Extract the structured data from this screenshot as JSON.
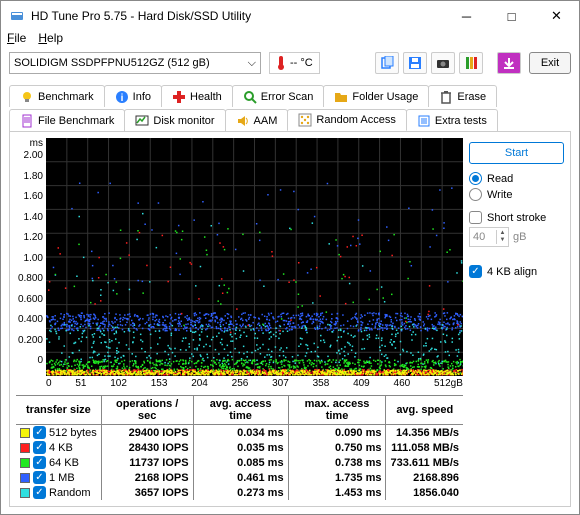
{
  "window": {
    "title": "HD Tune Pro 5.75 - Hard Disk/SSD Utility"
  },
  "menu": {
    "file": "File",
    "help": "Help"
  },
  "drive": {
    "selected": "SOLIDIGM SSDPFPNU512GZ (512 gB)",
    "temp": "-- °C"
  },
  "toolbar_icons": [
    "copy",
    "save",
    "camera",
    "trash",
    "down"
  ],
  "exit_label": "Exit",
  "tabs_row1": [
    {
      "icon": "bulb",
      "color": "#f5c518",
      "label": "Benchmark"
    },
    {
      "icon": "info",
      "color": "#2a7fff",
      "label": "Info"
    },
    {
      "icon": "plus",
      "color": "#d22",
      "label": "Health"
    },
    {
      "icon": "search",
      "color": "#2a9d2a",
      "label": "Error Scan"
    },
    {
      "icon": "folder",
      "color": "#e6a817",
      "label": "Folder Usage"
    },
    {
      "icon": "trash",
      "color": "#555",
      "label": "Erase"
    }
  ],
  "tabs_row2": [
    {
      "icon": "file",
      "color": "#a030d0",
      "label": "File Benchmark"
    },
    {
      "icon": "monitor",
      "color": "#2a9d2a",
      "label": "Disk monitor"
    },
    {
      "icon": "speaker",
      "color": "#e6a817",
      "label": "AAM"
    },
    {
      "icon": "random",
      "color": "#e6a817",
      "label": "Random Access",
      "active": true
    },
    {
      "icon": "extra",
      "color": "#2a7fff",
      "label": "Extra tests"
    }
  ],
  "chart": {
    "ms_label": "ms",
    "y_ticks": [
      "2.00",
      "1.80",
      "1.60",
      "1.40",
      "1.20",
      "1.00",
      "0.800",
      "0.600",
      "0.400",
      "0.200",
      "0"
    ],
    "x_ticks": [
      "0",
      "51",
      "102",
      "153",
      "204",
      "256",
      "307",
      "358",
      "409",
      "460",
      "512gB"
    ],
    "background": "#000000",
    "scatter_colors": {
      "yellow": "#f5f50a",
      "red": "#ff2020",
      "green": "#20e820",
      "blue": "#3060ff",
      "cyan": "#30e0e0"
    }
  },
  "controls": {
    "start": "Start",
    "read": "Read",
    "write": "Write",
    "short_stroke": "Short stroke",
    "short_stroke_val": "40",
    "short_stroke_unit": "gB",
    "align": "4 KB align"
  },
  "results": {
    "headers": [
      "transfer size",
      "operations / sec",
      "avg. access time",
      "max. access time",
      "avg. speed"
    ],
    "rows": [
      {
        "color": "#f5f50a",
        "label": "512 bytes",
        "ops": "29400 IOPS",
        "avg": "0.034 ms",
        "max": "0.090 ms",
        "speed": "14.356 MB/s"
      },
      {
        "color": "#ff2020",
        "label": "4 KB",
        "ops": "28430 IOPS",
        "avg": "0.035 ms",
        "max": "0.750 ms",
        "speed": "111.058 MB/s"
      },
      {
        "color": "#20e820",
        "label": "64 KB",
        "ops": "11737 IOPS",
        "avg": "0.085 ms",
        "max": "0.738 ms",
        "speed": "733.611 MB/s"
      },
      {
        "color": "#3060ff",
        "label": "1 MB",
        "ops": "2168 IOPS",
        "avg": "0.461 ms",
        "max": "1.735 ms",
        "speed": "2168.896"
      },
      {
        "color": "#30e0e0",
        "label": "Random",
        "ops": "3657 IOPS",
        "avg": "0.273 ms",
        "max": "1.453 ms",
        "speed": "1856.040"
      }
    ]
  }
}
